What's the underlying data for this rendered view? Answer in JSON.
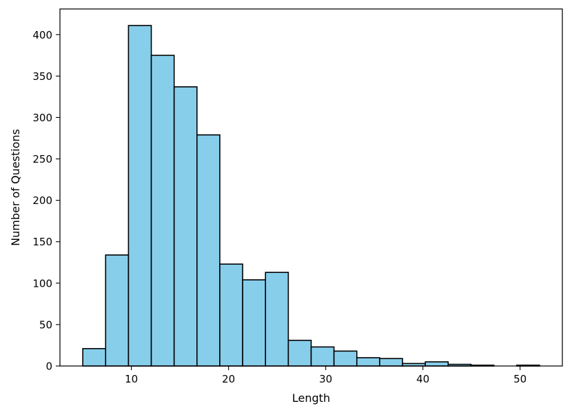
{
  "chart_data": {
    "type": "bar",
    "subtype": "histogram",
    "xlabel": "Length",
    "ylabel": "Number of Questions",
    "bar_color": "#87CEEB",
    "edge_color": "#000000",
    "xlim": [
      2.65,
      54.35
    ],
    "ylim": [
      0,
      431
    ],
    "xticks": [
      10,
      20,
      30,
      40,
      50
    ],
    "yticks": [
      0,
      50,
      100,
      150,
      200,
      250,
      300,
      350,
      400
    ],
    "bin_edges": [
      5,
      7.35,
      9.7,
      12.05,
      14.4,
      16.75,
      19.1,
      21.45,
      23.8,
      26.15,
      28.5,
      30.85,
      33.2,
      35.55,
      37.9,
      40.25,
      42.6,
      44.95,
      47.3,
      49.65,
      52
    ],
    "values": [
      21,
      134,
      411,
      375,
      337,
      279,
      123,
      104,
      113,
      31,
      23,
      18,
      10,
      9,
      3,
      5,
      2,
      1,
      0,
      1
    ],
    "grid": false,
    "legend": "none"
  }
}
